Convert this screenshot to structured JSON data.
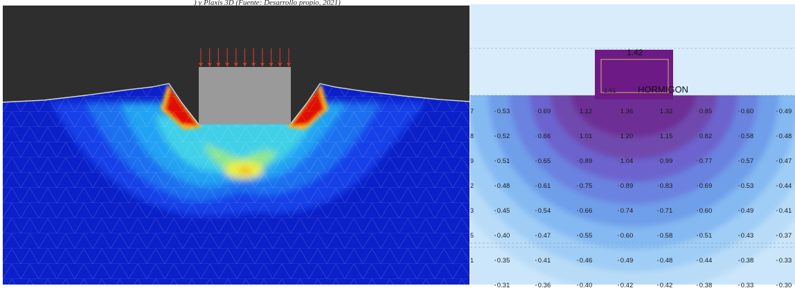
{
  "caption": ") y Plaxis 3D (Fuente: Desarrollo propio, 2021)",
  "left_model": {
    "soil_color": "#0b20c9",
    "sky_color": "#2e2e2e",
    "footing_color": "#9a9a9a",
    "load_arrow_color": "#c0392b",
    "load_arrow_count": 11,
    "contour_colors": [
      "#0b20c9",
      "#1240e8",
      "#1a70f0",
      "#22a2f3",
      "#3fd0e8",
      "#8ee68a",
      "#e8f03a",
      "#f8b020",
      "#f05a10",
      "#e01000"
    ]
  },
  "right_model": {
    "background_color": "#cbe6fb",
    "footing_color": "#6d1a86",
    "footing_value": "1.42",
    "material_label": "HORMIGON",
    "point_label": "1.61",
    "row_labels": [
      "7",
      "8",
      "9",
      "2",
      "3",
      "5",
      "1",
      ""
    ],
    "grid": [
      [
        "0.53",
        "0.69",
        "1.12",
        "1.36",
        "1.32",
        "0.85",
        "0.60",
        "0.49"
      ],
      [
        "0.52",
        "0.66",
        "1.01",
        "1.20",
        "1.15",
        "0.82",
        "0.58",
        "0.48"
      ],
      [
        "0.51",
        "0.65",
        "0.89",
        "1.04",
        "0.99",
        "0.77",
        "0.57",
        "0.47"
      ],
      [
        "0.48",
        "0.61",
        "0.75",
        "0.89",
        "0.83",
        "0.69",
        "0.53",
        "0.44"
      ],
      [
        "0.45",
        "0.54",
        "0.66",
        "0.74",
        "0.71",
        "0.60",
        "0.49",
        "0.41"
      ],
      [
        "0.40",
        "0.47",
        "0.55",
        "0.60",
        "0.58",
        "0.51",
        "0.43",
        "0.37"
      ],
      [
        "0.35",
        "0.41",
        "0.46",
        "0.49",
        "0.48",
        "0.44",
        "0.38",
        "0.33"
      ],
      [
        "0.31",
        "0.36",
        "0.40",
        "0.42",
        "0.42",
        "0.38",
        "0.33",
        "0.30"
      ]
    ],
    "contour_colors": [
      "#b8dcf8",
      "#9fcdf6",
      "#84b9f2",
      "#6f9fea",
      "#6a83e0",
      "#6c64cf",
      "#6f4aae",
      "#6d2f95"
    ]
  }
}
